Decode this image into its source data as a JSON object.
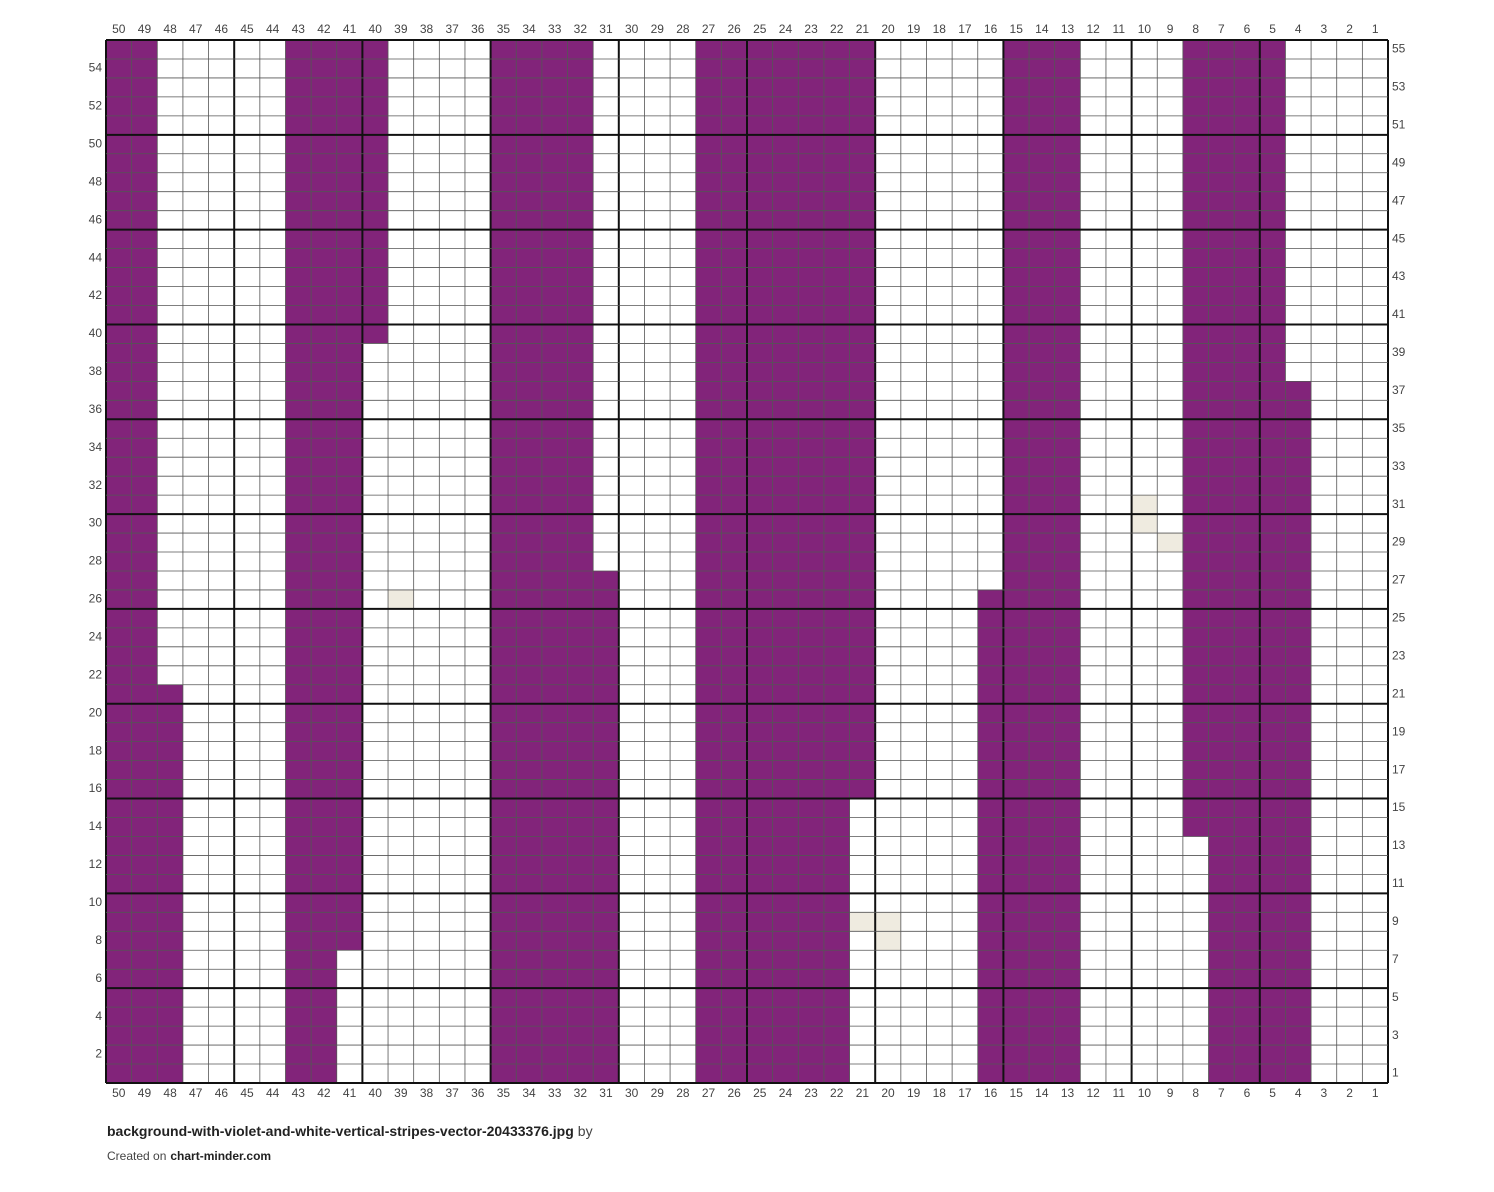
{
  "title": "background-with-violet-and-white-vertical-stripes-vector-20433376.jpg",
  "by": "by",
  "created_on": "Created on",
  "site": "chart-minder.com",
  "columns": [
    50,
    49,
    48,
    47,
    46,
    45,
    44,
    43,
    42,
    41,
    40,
    39,
    38,
    37,
    36,
    35,
    34,
    33,
    32,
    31,
    30,
    29,
    28,
    27,
    26,
    25,
    24,
    23,
    22,
    21,
    20,
    19,
    18,
    17,
    16,
    15,
    14,
    13,
    12,
    11,
    10,
    9,
    8,
    7,
    6,
    5,
    4,
    3,
    2,
    1
  ],
  "rows": [
    1,
    2,
    3,
    4,
    5,
    6,
    7,
    8,
    9,
    10,
    11,
    12,
    13,
    14,
    15,
    16,
    17,
    18,
    19,
    20,
    21,
    22,
    23,
    24,
    25,
    26,
    27,
    28,
    29,
    30,
    31,
    32,
    33,
    34,
    35,
    36,
    37,
    38,
    39,
    40,
    41,
    42,
    43,
    44,
    45,
    46,
    47,
    48,
    49,
    50,
    51,
    52,
    53,
    54,
    55
  ],
  "stripe_color": "#82247a",
  "accent_color": "#efebe0",
  "stripes": [
    {
      "column": 50,
      "from": 1,
      "to": 55
    },
    {
      "column": 49,
      "from": 1,
      "to": 55
    },
    {
      "column": 48,
      "from": 1,
      "to": 21
    },
    {
      "column": 43,
      "from": 1,
      "to": 55
    },
    {
      "column": 42,
      "from": 1,
      "to": 55
    },
    {
      "column": 41,
      "from": 8,
      "to": 55
    },
    {
      "column": 40,
      "from": 40,
      "to": 55
    },
    {
      "column": 35,
      "from": 1,
      "to": 55
    },
    {
      "column": 34,
      "from": 1,
      "to": 55
    },
    {
      "column": 33,
      "from": 1,
      "to": 55
    },
    {
      "column": 32,
      "from": 1,
      "to": 55
    },
    {
      "column": 31,
      "from": 1,
      "to": 27
    },
    {
      "column": 27,
      "from": 1,
      "to": 55
    },
    {
      "column": 26,
      "from": 1,
      "to": 55
    },
    {
      "column": 25,
      "from": 1,
      "to": 55
    },
    {
      "column": 24,
      "from": 1,
      "to": 55
    },
    {
      "column": 23,
      "from": 1,
      "to": 55
    },
    {
      "column": 22,
      "from": 1,
      "to": 55
    },
    {
      "column": 21,
      "from": 16,
      "to": 55
    },
    {
      "column": 16,
      "from": 1,
      "to": 26
    },
    {
      "column": 15,
      "from": 1,
      "to": 55
    },
    {
      "column": 14,
      "from": 1,
      "to": 55
    },
    {
      "column": 13,
      "from": 1,
      "to": 55
    },
    {
      "column": 8,
      "from": 14,
      "to": 55
    },
    {
      "column": 7,
      "from": 1,
      "to": 55
    },
    {
      "column": 6,
      "from": 1,
      "to": 55
    },
    {
      "column": 5,
      "from": 1,
      "to": 55
    },
    {
      "column": 4,
      "from": 1,
      "to": 37
    }
  ],
  "accent_cells": [
    {
      "column": 39,
      "row": 26
    },
    {
      "column": 10,
      "row": 31
    },
    {
      "column": 10,
      "row": 30
    },
    {
      "column": 9,
      "row": 29
    },
    {
      "column": 21,
      "row": 9
    },
    {
      "column": 20,
      "row": 9
    },
    {
      "column": 20,
      "row": 8
    }
  ]
}
